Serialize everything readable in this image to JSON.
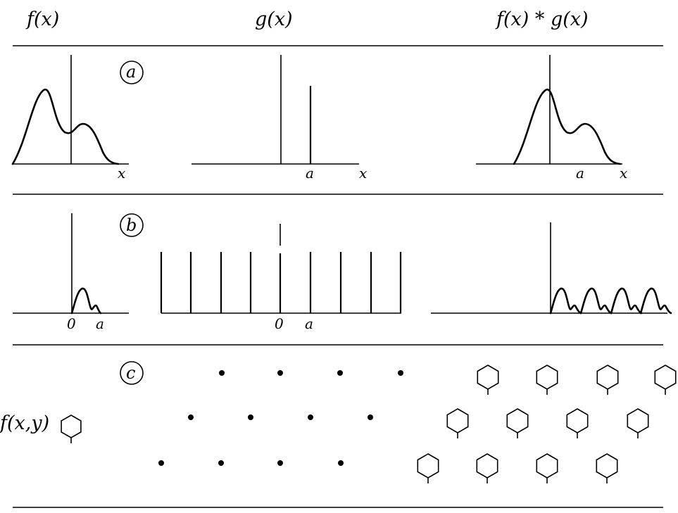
{
  "headers": {
    "f": "f(x)",
    "g": "g(x)",
    "conv": "f(x) * g(x)"
  },
  "panels": {
    "a": {
      "label": "a",
      "f_axis_label": "x",
      "g_tick_label": "a",
      "g_axis_label": "x",
      "conv_tick_label": "a",
      "conv_axis_label": "x"
    },
    "b": {
      "label": "b",
      "f_origin_label": "0",
      "f_tick_label": "a",
      "g_origin_label": "0",
      "g_tick_label": "a"
    },
    "c": {
      "label": "c",
      "f_label": "f(x,y)"
    }
  },
  "colors": {
    "ink": "#000000",
    "paper": "#ffffff"
  },
  "icons": {
    "motif": "hexagon-motif-icon",
    "lattice_point": "lattice-dot-icon"
  }
}
